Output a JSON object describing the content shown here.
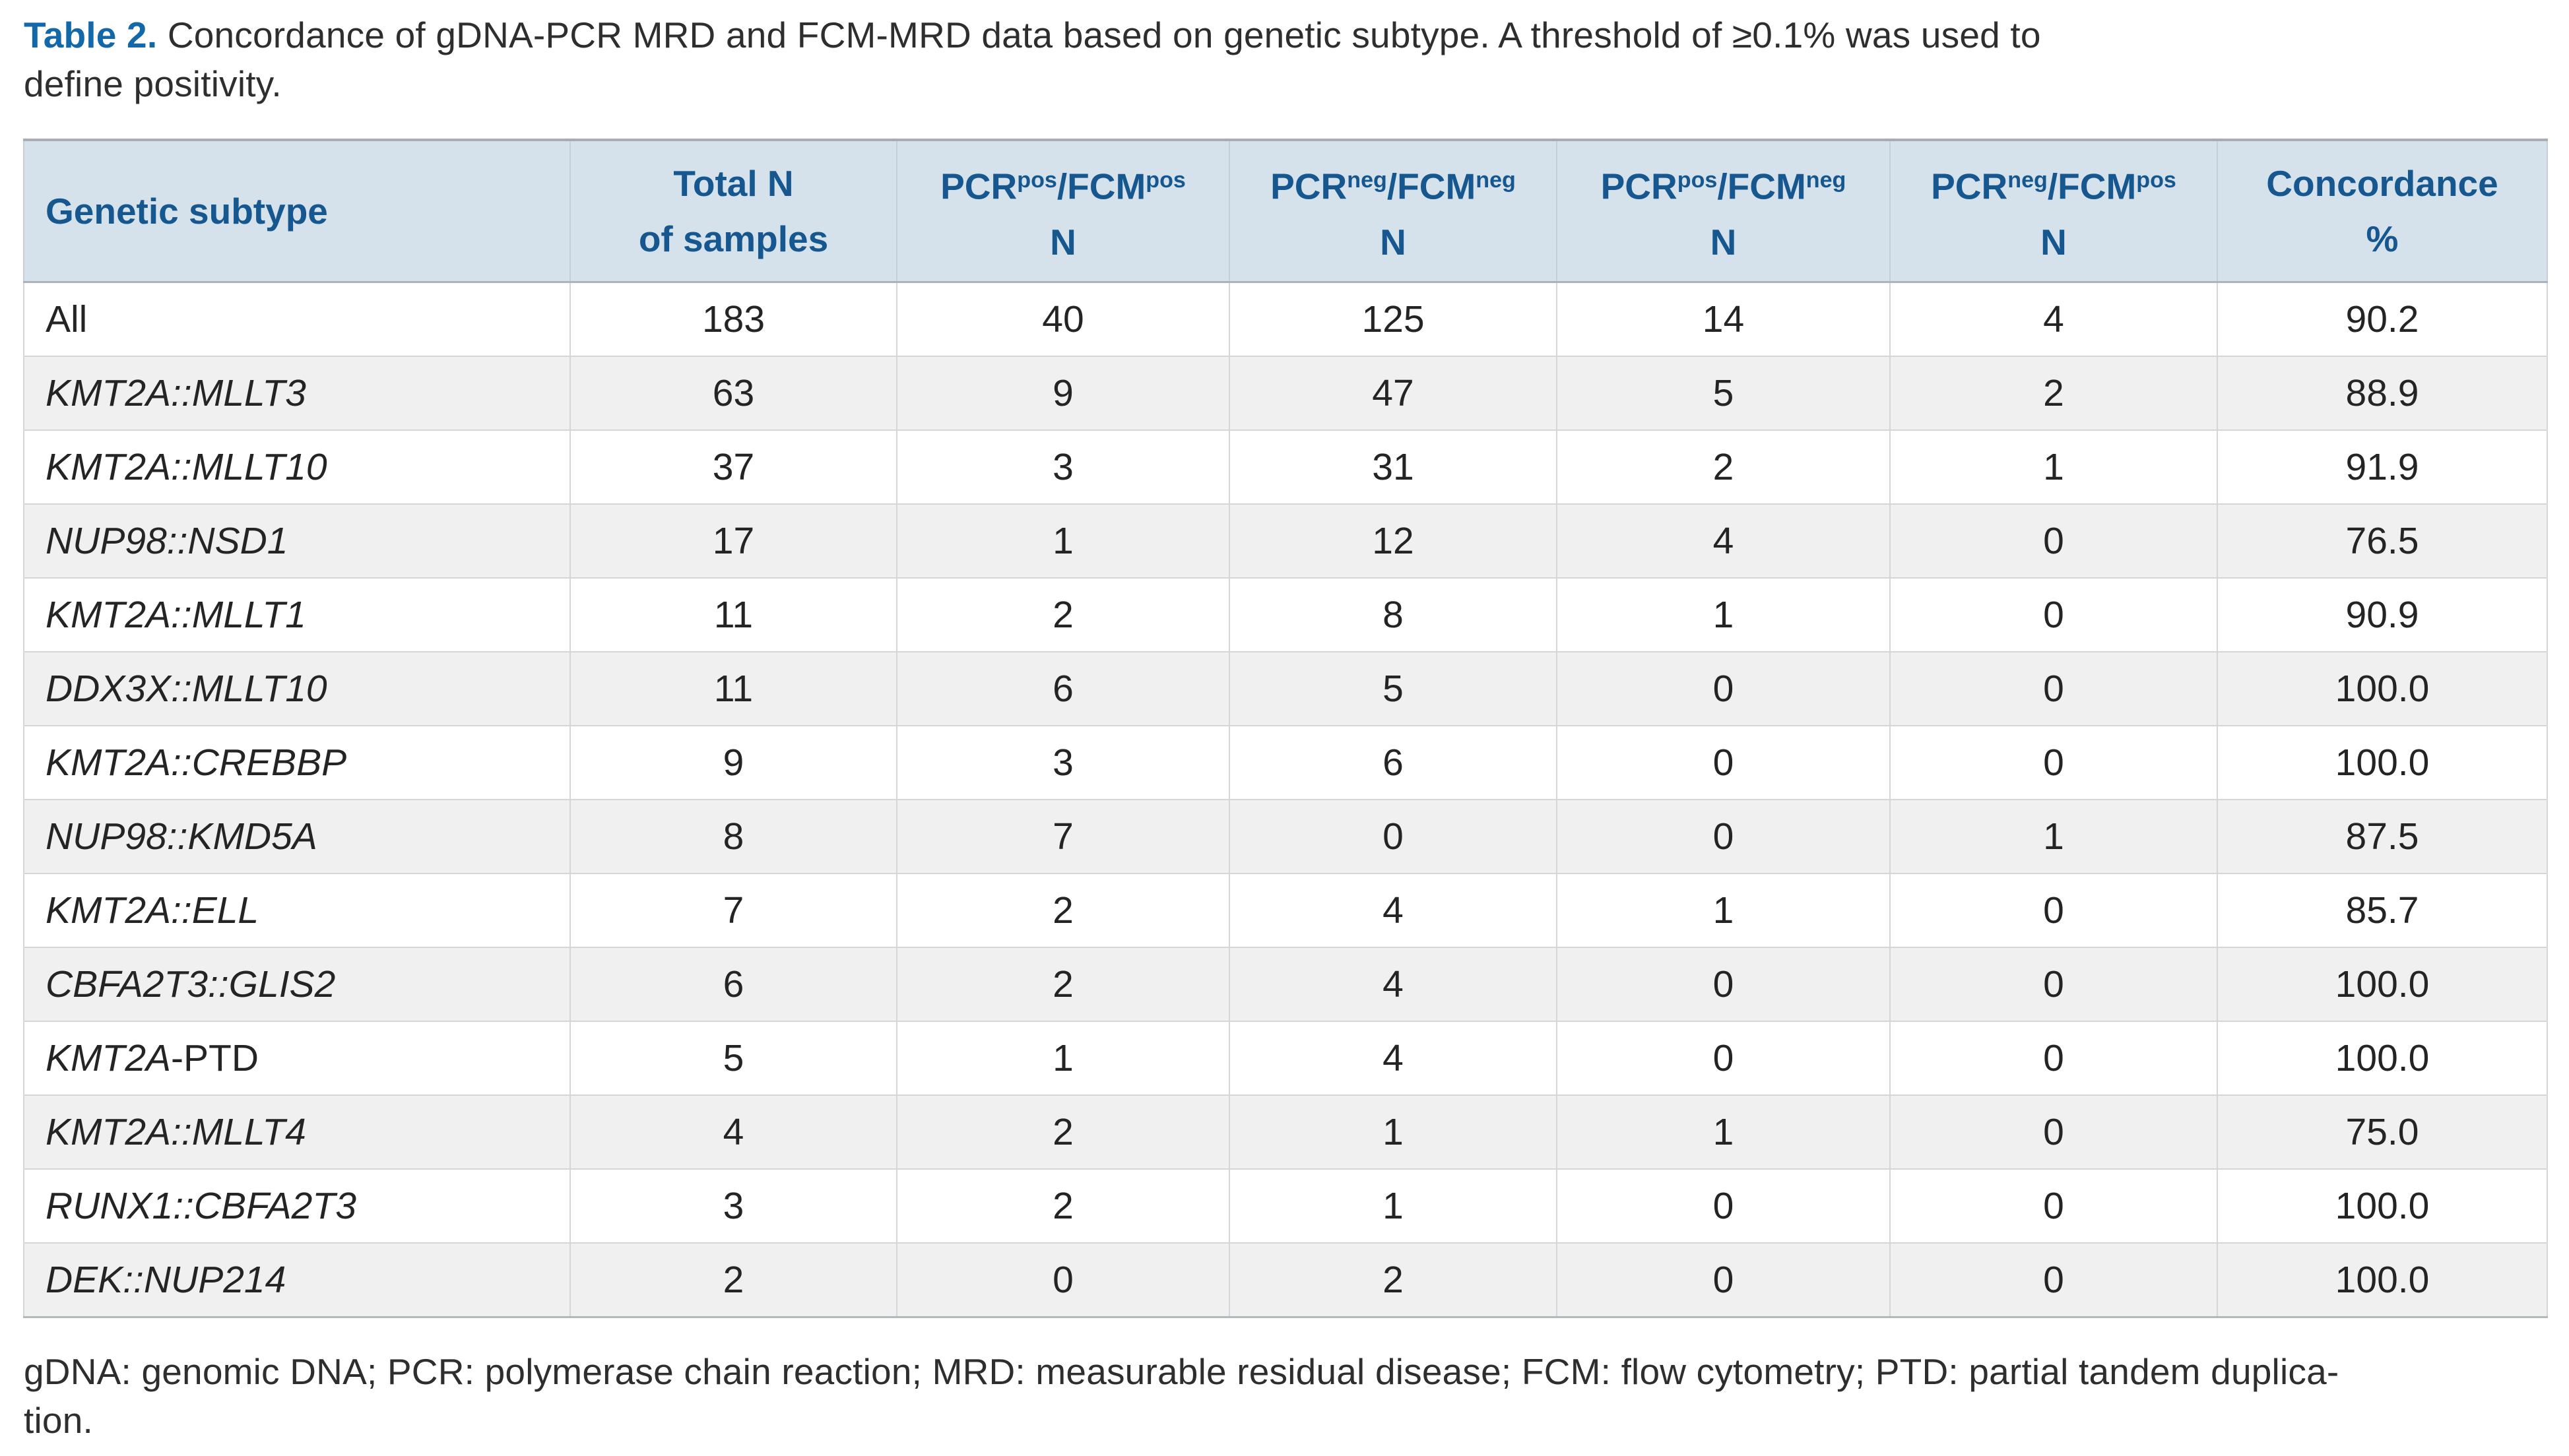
{
  "caption": {
    "label": "Table 2.",
    "line1": "Concordance of gDNA-PCR MRD and FCM-MRD data based on genetic subtype. A threshold of ≥0.1% was used to",
    "line2": "define positivity."
  },
  "colors": {
    "caption_label_blue": "#1268a8",
    "header_bg": "#d6e2eb",
    "header_text": "#15578e",
    "stripe_row_bg": "#f0f0f0",
    "body_text": "#242424",
    "cell_border": "#d3d7da"
  },
  "table": {
    "columns": [
      {
        "key": "genetic-subtype",
        "align": "left",
        "label_lines": [
          [
            {
              "t": "Genetic subtype"
            }
          ]
        ]
      },
      {
        "key": "total-n",
        "align": "center",
        "label_lines": [
          [
            {
              "t": "Total N"
            }
          ],
          [
            {
              "t": "of samples"
            }
          ]
        ]
      },
      {
        "key": "pcr-pos-fcm-pos",
        "align": "center",
        "label_lines": [
          [
            {
              "t": "PCR"
            },
            {
              "t": "pos",
              "sup": true
            },
            {
              "t": "/FCM"
            },
            {
              "t": "pos",
              "sup": true
            }
          ],
          [
            {
              "t": "N"
            }
          ]
        ]
      },
      {
        "key": "pcr-neg-fcm-neg",
        "align": "center",
        "label_lines": [
          [
            {
              "t": "PCR"
            },
            {
              "t": "neg",
              "sup": true
            },
            {
              "t": "/FCM"
            },
            {
              "t": "neg",
              "sup": true
            }
          ],
          [
            {
              "t": "N"
            }
          ]
        ]
      },
      {
        "key": "pcr-pos-fcm-neg",
        "align": "center",
        "label_lines": [
          [
            {
              "t": "PCR"
            },
            {
              "t": "pos",
              "sup": true
            },
            {
              "t": "/FCM"
            },
            {
              "t": "neg",
              "sup": true
            }
          ],
          [
            {
              "t": "N"
            }
          ]
        ]
      },
      {
        "key": "pcr-neg-fcm-pos",
        "align": "center",
        "label_lines": [
          [
            {
              "t": "PCR"
            },
            {
              "t": "neg",
              "sup": true
            },
            {
              "t": "/FCM"
            },
            {
              "t": "pos",
              "sup": true
            }
          ],
          [
            {
              "t": "N"
            }
          ]
        ]
      },
      {
        "key": "concordance",
        "align": "center",
        "label_lines": [
          [
            {
              "t": "Concordance"
            }
          ],
          [
            {
              "t": "%"
            }
          ]
        ]
      }
    ],
    "rows": [
      {
        "subtype": "All",
        "suffix": "",
        "italic": false,
        "values": [
          "183",
          "40",
          "125",
          "14",
          "4",
          "90.2"
        ]
      },
      {
        "subtype": "KMT2A::MLLT3",
        "suffix": "",
        "italic": true,
        "values": [
          "63",
          "9",
          "47",
          "5",
          "2",
          "88.9"
        ]
      },
      {
        "subtype": "KMT2A::MLLT10",
        "suffix": "",
        "italic": true,
        "values": [
          "37",
          "3",
          "31",
          "2",
          "1",
          "91.9"
        ]
      },
      {
        "subtype": "NUP98::NSD1",
        "suffix": "",
        "italic": true,
        "values": [
          "17",
          "1",
          "12",
          "4",
          "0",
          "76.5"
        ]
      },
      {
        "subtype": "KMT2A::MLLT1",
        "suffix": "",
        "italic": true,
        "values": [
          "11",
          "2",
          "8",
          "1",
          "0",
          "90.9"
        ]
      },
      {
        "subtype": "DDX3X::MLLT10",
        "suffix": "",
        "italic": true,
        "values": [
          "11",
          "6",
          "5",
          "0",
          "0",
          "100.0"
        ]
      },
      {
        "subtype": "KMT2A::CREBBP",
        "suffix": "",
        "italic": true,
        "values": [
          "9",
          "3",
          "6",
          "0",
          "0",
          "100.0"
        ]
      },
      {
        "subtype": "NUP98::KMD5A",
        "suffix": "",
        "italic": true,
        "values": [
          "8",
          "7",
          "0",
          "0",
          "1",
          "87.5"
        ]
      },
      {
        "subtype": "KMT2A::ELL",
        "suffix": "",
        "italic": true,
        "values": [
          "7",
          "2",
          "4",
          "1",
          "0",
          "85.7"
        ]
      },
      {
        "subtype": "CBFA2T3::GLIS2",
        "suffix": "",
        "italic": true,
        "values": [
          "6",
          "2",
          "4",
          "0",
          "0",
          "100.0"
        ]
      },
      {
        "subtype": "KMT2A",
        "suffix": "-PTD",
        "italic": true,
        "values": [
          "5",
          "1",
          "4",
          "0",
          "0",
          "100.0"
        ]
      },
      {
        "subtype": "KMT2A::MLLT4",
        "suffix": "",
        "italic": true,
        "values": [
          "4",
          "2",
          "1",
          "1",
          "0",
          "75.0"
        ]
      },
      {
        "subtype": "RUNX1::CBFA2T3",
        "suffix": "",
        "italic": true,
        "values": [
          "3",
          "2",
          "1",
          "0",
          "0",
          "100.0"
        ]
      },
      {
        "subtype": "DEK::NUP214",
        "suffix": "",
        "italic": true,
        "values": [
          "2",
          "0",
          "2",
          "0",
          "0",
          "100.0"
        ]
      }
    ]
  },
  "footnote": {
    "line1": "gDNA: genomic DNA; PCR: polymerase chain reaction; MRD: measurable residual disease; FCM: flow cytometry; PTD: partial tandem duplica-",
    "line2": "tion."
  }
}
